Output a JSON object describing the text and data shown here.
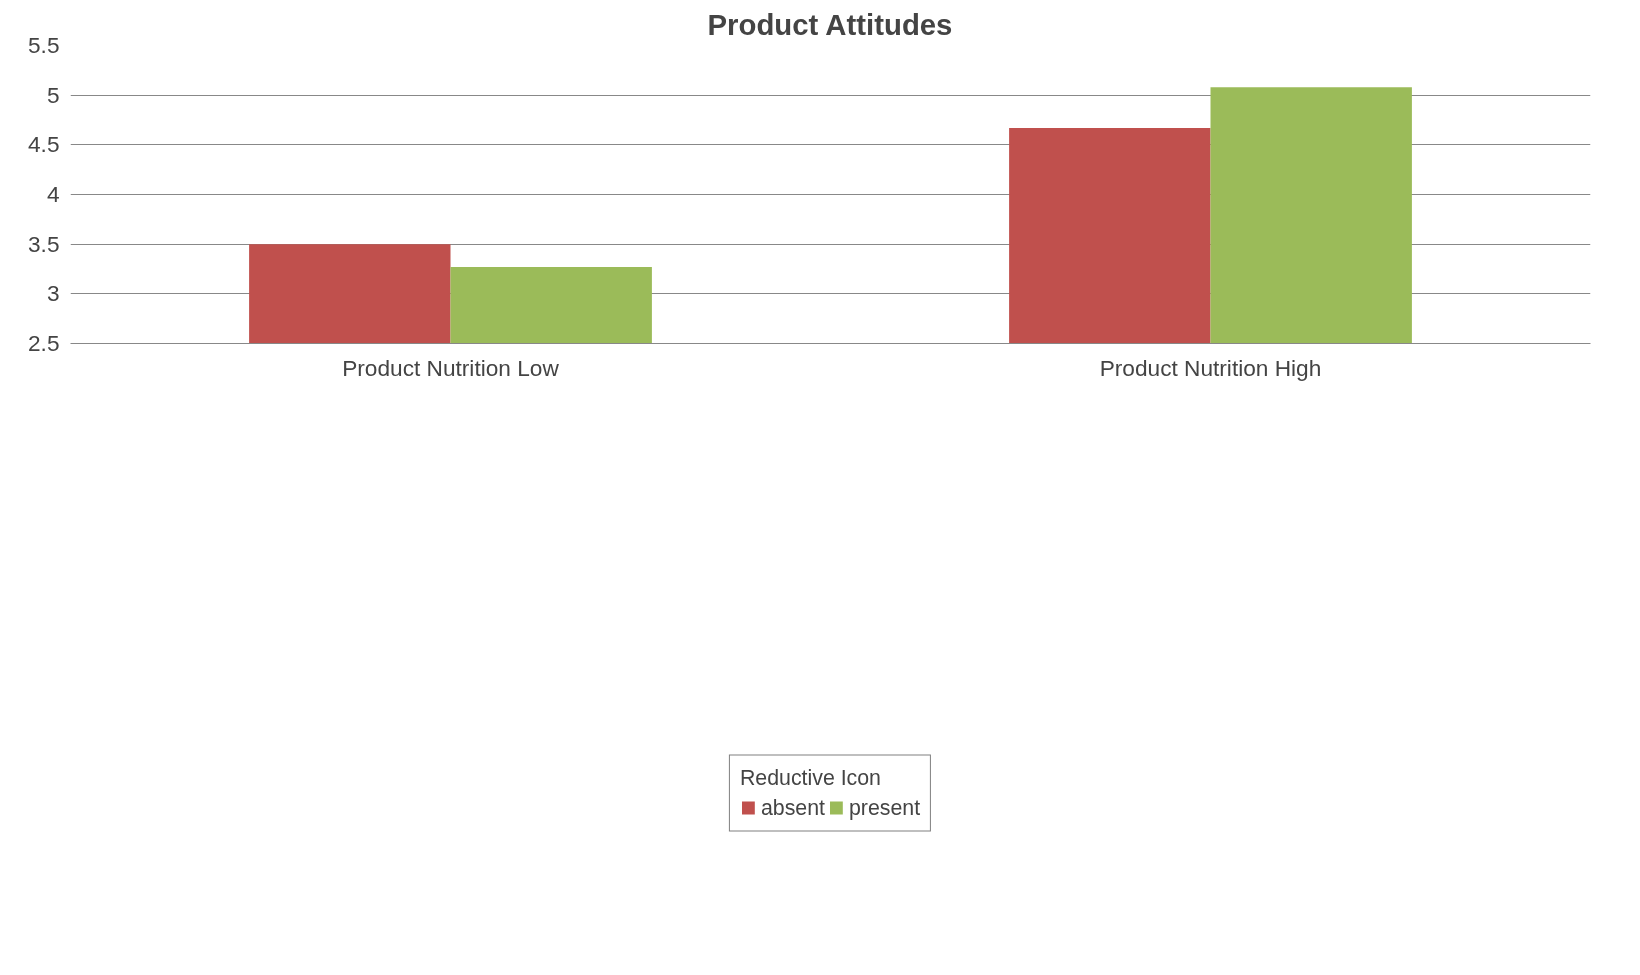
{
  "chart_data": {
    "type": "bar",
    "title": "Product Attitudes",
    "categories": [
      "Product Nutrition Low",
      "Product Nutrition High"
    ],
    "legend_title": "Reductive Icon",
    "series": [
      {
        "name": "absent",
        "color": "#c0504d",
        "values": [
          3.5,
          4.67
        ]
      },
      {
        "name": "present",
        "color": "#9bbb59",
        "values": [
          3.27,
          5.08
        ]
      }
    ],
    "ylim": [
      2.5,
      5.5
    ],
    "yticks": [
      2.5,
      3,
      3.5,
      4,
      4.5,
      5,
      5.5
    ],
    "grid": "y",
    "legend": "bottom"
  }
}
